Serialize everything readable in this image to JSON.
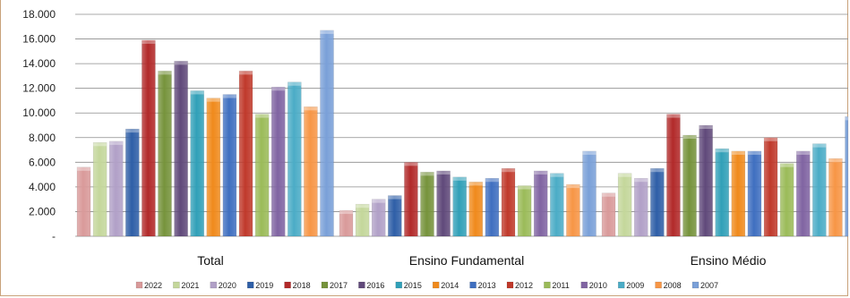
{
  "chart_data": {
    "type": "bar",
    "categories": [
      "Total",
      "Ensino Fundamental",
      "Ensino Médio"
    ],
    "ylim": [
      0,
      18000
    ],
    "yticks": [
      {
        "value": 0,
        "label": "-"
      },
      {
        "value": 2000,
        "label": "2.000"
      },
      {
        "value": 4000,
        "label": "4.000"
      },
      {
        "value": 6000,
        "label": "6.000"
      },
      {
        "value": 8000,
        "label": "8.000"
      },
      {
        "value": 10000,
        "label": "10.000"
      },
      {
        "value": 12000,
        "label": "12.000"
      },
      {
        "value": 14000,
        "label": "14.000"
      },
      {
        "value": 16000,
        "label": "16.000"
      },
      {
        "value": 18000,
        "label": "18.000"
      }
    ],
    "grid": true,
    "legend_position": "bottom",
    "series": [
      {
        "name": "2022",
        "color": "#d99a9a",
        "values": [
          5600,
          2100,
          3500
        ]
      },
      {
        "name": "2021",
        "color": "#c4d79b",
        "values": [
          7600,
          2600,
          5100
        ]
      },
      {
        "name": "2020",
        "color": "#b1a0c7",
        "values": [
          7700,
          3000,
          4700
        ]
      },
      {
        "name": "2019",
        "color": "#2f5fa7",
        "values": [
          8700,
          3300,
          5500
        ]
      },
      {
        "name": "2018",
        "color": "#b22a2a",
        "values": [
          15900,
          6000,
          9900
        ]
      },
      {
        "name": "2017",
        "color": "#76933c",
        "values": [
          13400,
          5200,
          8200
        ]
      },
      {
        "name": "2016",
        "color": "#60497a",
        "values": [
          14200,
          5300,
          9000
        ]
      },
      {
        "name": "2015",
        "color": "#31a0b8",
        "values": [
          11800,
          4800,
          7100
        ]
      },
      {
        "name": "2014",
        "color": "#f08a1c",
        "values": [
          11200,
          4400,
          6900
        ]
      },
      {
        "name": "2013",
        "color": "#3f6fc0",
        "values": [
          11500,
          4700,
          6900
        ]
      },
      {
        "name": "2012",
        "color": "#c0392b",
        "values": [
          13400,
          5500,
          8000
        ]
      },
      {
        "name": "2011",
        "color": "#9bbb59",
        "values": [
          9900,
          4100,
          5900
        ]
      },
      {
        "name": "2010",
        "color": "#8064a2",
        "values": [
          12100,
          5300,
          6900
        ]
      },
      {
        "name": "2009",
        "color": "#4bacc6",
        "values": [
          12500,
          5100,
          7500
        ]
      },
      {
        "name": "2008",
        "color": "#f79646",
        "values": [
          10500,
          4200,
          6300
        ]
      },
      {
        "name": "2007",
        "color": "#7aa0d8",
        "values": [
          16700,
          6900,
          9700
        ]
      }
    ]
  }
}
